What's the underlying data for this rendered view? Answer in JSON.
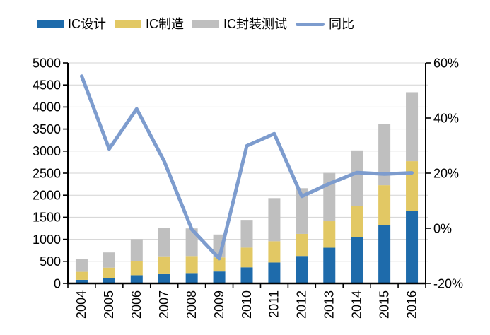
{
  "legend": {
    "items": [
      {
        "label": "IC设计",
        "type": "bar"
      },
      {
        "label": "IC制造",
        "type": "bar"
      },
      {
        "label": "IC封装测试",
        "type": "bar"
      },
      {
        "label": "同比",
        "type": "line"
      }
    ]
  },
  "chart_data": {
    "type": "bar",
    "stacked": true,
    "title": "",
    "grid": true,
    "legend_position": "top",
    "categories": [
      "2004",
      "2005",
      "2006",
      "2007",
      "2008",
      "2009",
      "2010",
      "2011",
      "2012",
      "2013",
      "2014",
      "2015",
      "2016"
    ],
    "series": [
      {
        "name": "IC设计",
        "color": "#1e6bab",
        "values": [
          81.5,
          124.3,
          186.2,
          225.7,
          235.2,
          269.9,
          363.9,
          473.7,
          621.7,
          808.8,
          1047.4,
          1325.0,
          1644.3
        ]
      },
      {
        "name": "IC制造",
        "color": "#e2c864",
        "values": [
          181.3,
          232.9,
          323.0,
          387.9,
          384.7,
          317.0,
          447.1,
          482.4,
          501.1,
          600.9,
          712.1,
          900.8,
          1126.9
        ]
      },
      {
        "name": "IC封装测试",
        "color": "#bfbfbf",
        "values": [
          282.5,
          344.9,
          497.1,
          637.7,
          626.9,
          522.2,
          629.2,
          977.6,
          1035.7,
          1098.8,
          1255.9,
          1384.0,
          1564.3
        ]
      }
    ],
    "line_series": {
      "name": "同比",
      "color": "#7d9cce",
      "axis": "right",
      "values": [
        55.2,
        28.8,
        43.3,
        24.3,
        -0.4,
        -11.0,
        29.9,
        34.3,
        11.6,
        16.2,
        20.2,
        19.7,
        20.1
      ]
    },
    "left_axis": {
      "min": 0,
      "max": 5000,
      "tick_interval": 500,
      "tick_labels": [
        "0",
        "500",
        "1000",
        "1500",
        "2000",
        "2500",
        "3000",
        "3500",
        "4000",
        "4500",
        "5000"
      ]
    },
    "right_axis": {
      "min": -20,
      "max": 60,
      "tick_interval": 20,
      "tick_labels": [
        "-20%",
        "0%",
        "20%",
        "40%",
        "60%"
      ]
    }
  }
}
